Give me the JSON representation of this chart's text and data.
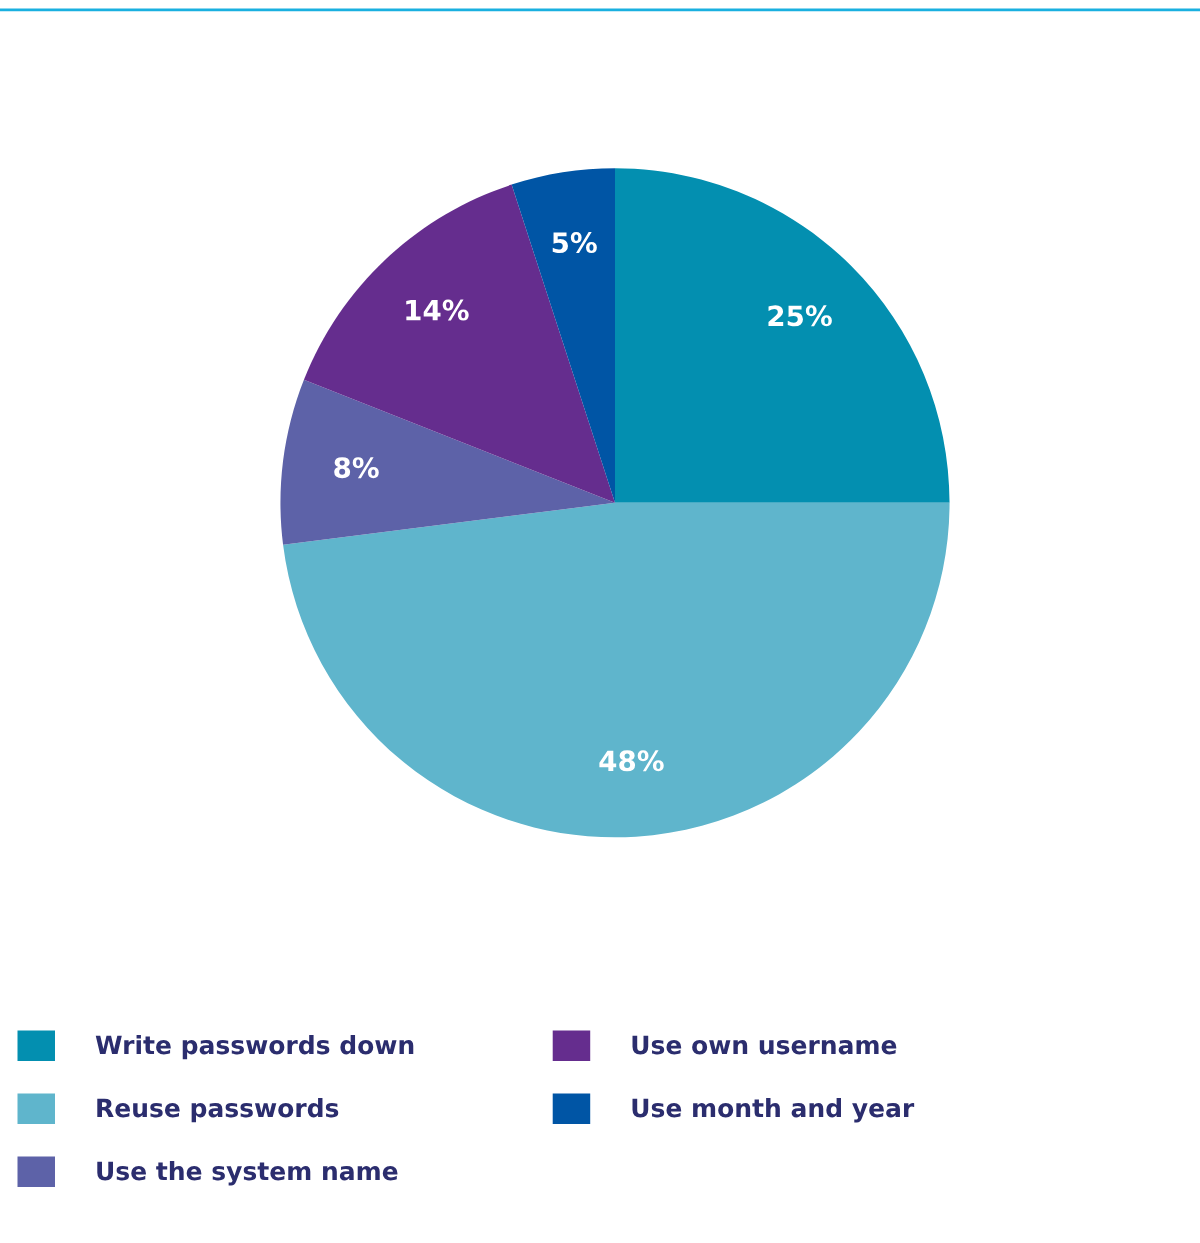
{
  "chart_data": {
    "type": "pie",
    "categories": [
      "Write passwords down",
      "Reuse passwords",
      "Use the system name",
      "Use own username",
      "Use month and year"
    ],
    "values": [
      25,
      48,
      8,
      14,
      5
    ],
    "colors": [
      "#038fb0",
      "#5fb5cc",
      "#5d62a8",
      "#652d8e",
      "#0055a5"
    ],
    "value_labels": [
      "25%",
      "48%",
      "8%",
      "14%",
      "5%"
    ],
    "legend": "bottom"
  }
}
